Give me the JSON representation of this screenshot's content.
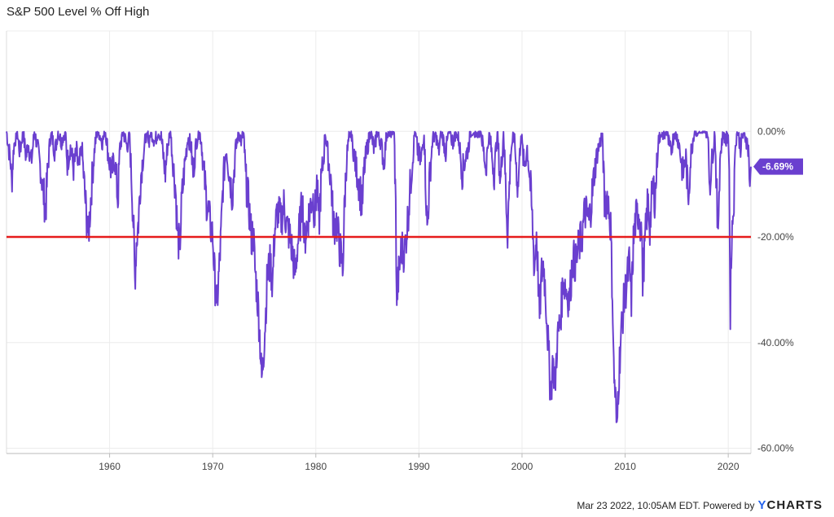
{
  "chart_data": {
    "type": "line",
    "title": "S&P 500 Level % Off High",
    "xlabel": "",
    "ylabel": "",
    "xlim": [
      1950,
      2022.2
    ],
    "ylim": [
      -61,
      19
    ],
    "x_ticks": [
      1960,
      1970,
      1980,
      1990,
      2000,
      2010,
      2020
    ],
    "x_tick_labels": [
      "1960",
      "1970",
      "1980",
      "1990",
      "2000",
      "2010",
      "2020"
    ],
    "y_ticks": [
      0,
      -20,
      -40,
      -60
    ],
    "y_tick_labels": [
      "0.00%",
      "-20.00%",
      "-40.00%",
      "-60.00%"
    ],
    "grid": true,
    "series": [
      {
        "name": "S&P 500 Level % Off High",
        "color": "#6a3fcf",
        "points": [
          [
            1950.0,
            0
          ],
          [
            1950.4,
            -6
          ],
          [
            1950.5,
            -10
          ],
          [
            1950.7,
            -3
          ],
          [
            1951.0,
            0
          ],
          [
            1951.3,
            -4
          ],
          [
            1951.6,
            0
          ],
          [
            1951.9,
            -5
          ],
          [
            1952.1,
            -2
          ],
          [
            1952.4,
            -6
          ],
          [
            1952.7,
            0
          ],
          [
            1953.0,
            -3
          ],
          [
            1953.3,
            -7
          ],
          [
            1953.6,
            -12
          ],
          [
            1953.8,
            -15
          ],
          [
            1954.0,
            -7
          ],
          [
            1954.3,
            0
          ],
          [
            1954.7,
            -4
          ],
          [
            1955.0,
            0
          ],
          [
            1955.3,
            -2
          ],
          [
            1955.7,
            0
          ],
          [
            1955.9,
            -6
          ],
          [
            1956.2,
            -3
          ],
          [
            1956.5,
            -7
          ],
          [
            1956.8,
            -4
          ],
          [
            1957.0,
            -8
          ],
          [
            1957.3,
            -3
          ],
          [
            1957.6,
            -12
          ],
          [
            1957.9,
            -20
          ],
          [
            1958.0,
            -18
          ],
          [
            1958.3,
            -9
          ],
          [
            1958.6,
            -2
          ],
          [
            1958.9,
            0
          ],
          [
            1959.3,
            -2
          ],
          [
            1959.6,
            0
          ],
          [
            1959.9,
            -5
          ],
          [
            1960.2,
            -8
          ],
          [
            1960.5,
            -5
          ],
          [
            1960.8,
            -13
          ],
          [
            1961.0,
            -3
          ],
          [
            1961.3,
            0
          ],
          [
            1961.7,
            -3
          ],
          [
            1961.9,
            0
          ],
          [
            1962.1,
            -8
          ],
          [
            1962.3,
            -17
          ],
          [
            1962.45,
            -28
          ],
          [
            1962.6,
            -21
          ],
          [
            1962.8,
            -17
          ],
          [
            1963.0,
            -9
          ],
          [
            1963.3,
            -4
          ],
          [
            1963.6,
            0
          ],
          [
            1963.8,
            -2
          ],
          [
            1964.0,
            0
          ],
          [
            1964.4,
            -2
          ],
          [
            1964.7,
            0
          ],
          [
            1965.0,
            -1
          ],
          [
            1965.4,
            -8
          ],
          [
            1965.6,
            -3
          ],
          [
            1965.9,
            0
          ],
          [
            1966.1,
            -5
          ],
          [
            1966.4,
            -11
          ],
          [
            1966.6,
            -20
          ],
          [
            1966.8,
            -22
          ],
          [
            1967.0,
            -13
          ],
          [
            1967.3,
            -6
          ],
          [
            1967.6,
            -1
          ],
          [
            1967.9,
            -3
          ],
          [
            1968.1,
            -8
          ],
          [
            1968.4,
            -2
          ],
          [
            1968.7,
            0
          ],
          [
            1968.9,
            -2
          ],
          [
            1969.1,
            -7
          ],
          [
            1969.4,
            -13
          ],
          [
            1969.7,
            -17
          ],
          [
            1970.0,
            -20
          ],
          [
            1970.2,
            -28
          ],
          [
            1970.4,
            -33
          ],
          [
            1970.6,
            -27
          ],
          [
            1970.8,
            -20
          ],
          [
            1971.0,
            -10
          ],
          [
            1971.3,
            -3
          ],
          [
            1971.6,
            -8
          ],
          [
            1971.9,
            -12
          ],
          [
            1972.2,
            -4
          ],
          [
            1972.5,
            0
          ],
          [
            1972.8,
            -2
          ],
          [
            1973.0,
            0
          ],
          [
            1973.2,
            -9
          ],
          [
            1973.5,
            -14
          ],
          [
            1973.8,
            -21
          ],
          [
            1973.9,
            -18
          ],
          [
            1974.1,
            -26
          ],
          [
            1974.4,
            -33
          ],
          [
            1974.6,
            -40
          ],
          [
            1974.75,
            -47
          ],
          [
            1974.9,
            -43
          ],
          [
            1975.1,
            -36
          ],
          [
            1975.3,
            -27
          ],
          [
            1975.6,
            -25
          ],
          [
            1975.8,
            -29
          ],
          [
            1976.0,
            -19
          ],
          [
            1976.3,
            -15
          ],
          [
            1976.6,
            -17
          ],
          [
            1976.9,
            -14
          ],
          [
            1977.2,
            -18
          ],
          [
            1977.5,
            -20
          ],
          [
            1977.8,
            -24
          ],
          [
            1978.0,
            -27
          ],
          [
            1978.2,
            -22
          ],
          [
            1978.5,
            -17
          ],
          [
            1978.7,
            -13
          ],
          [
            1978.9,
            -21
          ],
          [
            1979.1,
            -18
          ],
          [
            1979.4,
            -15
          ],
          [
            1979.7,
            -12
          ],
          [
            1979.9,
            -16
          ],
          [
            1980.1,
            -10
          ],
          [
            1980.3,
            -18
          ],
          [
            1980.5,
            -10
          ],
          [
            1980.8,
            -4
          ],
          [
            1980.9,
            0
          ],
          [
            1981.2,
            -5
          ],
          [
            1981.5,
            -10
          ],
          [
            1981.7,
            -18
          ],
          [
            1982.0,
            -17
          ],
          [
            1982.3,
            -22
          ],
          [
            1982.5,
            -24
          ],
          [
            1982.6,
            -27
          ],
          [
            1982.8,
            -13
          ],
          [
            1983.0,
            -5
          ],
          [
            1983.3,
            0
          ],
          [
            1983.6,
            -3
          ],
          [
            1983.9,
            -7
          ],
          [
            1984.2,
            -10
          ],
          [
            1984.5,
            -14
          ],
          [
            1984.7,
            -7
          ],
          [
            1985.0,
            -3
          ],
          [
            1985.3,
            0
          ],
          [
            1985.7,
            -4
          ],
          [
            1985.9,
            0
          ],
          [
            1986.3,
            -2
          ],
          [
            1986.6,
            -6
          ],
          [
            1986.9,
            0
          ],
          [
            1987.3,
            0
          ],
          [
            1987.6,
            0
          ],
          [
            1987.75,
            -15
          ],
          [
            1987.85,
            -32
          ],
          [
            1988.0,
            -28
          ],
          [
            1988.3,
            -22
          ],
          [
            1988.6,
            -23
          ],
          [
            1988.9,
            -17
          ],
          [
            1989.1,
            -12
          ],
          [
            1989.4,
            -5
          ],
          [
            1989.6,
            0
          ],
          [
            1989.9,
            -4
          ],
          [
            1990.2,
            -6
          ],
          [
            1990.5,
            0
          ],
          [
            1990.8,
            -19
          ],
          [
            1991.0,
            -10
          ],
          [
            1991.3,
            -2
          ],
          [
            1991.6,
            0
          ],
          [
            1991.9,
            -4
          ],
          [
            1992.2,
            0
          ],
          [
            1992.6,
            -4
          ],
          [
            1992.9,
            0
          ],
          [
            1993.3,
            -2
          ],
          [
            1993.6,
            0
          ],
          [
            1993.9,
            -2
          ],
          [
            1994.2,
            -8
          ],
          [
            1994.5,
            -5
          ],
          [
            1994.8,
            -3
          ],
          [
            1995.0,
            0
          ],
          [
            1995.5,
            0
          ],
          [
            1996.0,
            0
          ],
          [
            1996.5,
            -7
          ],
          [
            1996.8,
            0
          ],
          [
            1997.3,
            -8
          ],
          [
            1997.6,
            0
          ],
          [
            1997.9,
            -10
          ],
          [
            1998.2,
            0
          ],
          [
            1998.6,
            -19
          ],
          [
            1998.9,
            -4
          ],
          [
            1999.2,
            0
          ],
          [
            1999.6,
            -11
          ],
          [
            1999.9,
            0
          ],
          [
            2000.2,
            -7
          ],
          [
            2000.5,
            -3
          ],
          [
            2000.8,
            -10
          ],
          [
            2001.0,
            -17
          ],
          [
            2001.2,
            -26
          ],
          [
            2001.4,
            -19
          ],
          [
            2001.7,
            -35
          ],
          [
            2001.9,
            -27
          ],
          [
            2002.1,
            -25
          ],
          [
            2002.4,
            -35
          ],
          [
            2002.7,
            -47
          ],
          [
            2002.8,
            -49
          ],
          [
            2003.0,
            -44
          ],
          [
            2003.2,
            -48
          ],
          [
            2003.4,
            -40
          ],
          [
            2003.7,
            -36
          ],
          [
            2004.0,
            -28
          ],
          [
            2004.3,
            -30
          ],
          [
            2004.6,
            -32
          ],
          [
            2004.9,
            -24
          ],
          [
            2005.2,
            -25
          ],
          [
            2005.5,
            -22
          ],
          [
            2005.8,
            -20
          ],
          [
            2006.1,
            -15
          ],
          [
            2006.5,
            -17
          ],
          [
            2006.8,
            -12
          ],
          [
            2007.0,
            -8
          ],
          [
            2007.3,
            -4
          ],
          [
            2007.6,
            -2
          ],
          [
            2007.8,
            0
          ],
          [
            2008.0,
            -14
          ],
          [
            2008.3,
            -12
          ],
          [
            2008.6,
            -18
          ],
          [
            2008.8,
            -34
          ],
          [
            2008.9,
            -45
          ],
          [
            2009.1,
            -52
          ],
          [
            2009.2,
            -58
          ],
          [
            2009.3,
            -50
          ],
          [
            2009.5,
            -42
          ],
          [
            2009.7,
            -36
          ],
          [
            2009.9,
            -32
          ],
          [
            2010.2,
            -28
          ],
          [
            2010.4,
            -25
          ],
          [
            2010.6,
            -32
          ],
          [
            2010.8,
            -21
          ],
          [
            2011.0,
            -17
          ],
          [
            2011.3,
            -15
          ],
          [
            2011.6,
            -19
          ],
          [
            2011.7,
            -28
          ],
          [
            2011.9,
            -22
          ],
          [
            2012.2,
            -13
          ],
          [
            2012.4,
            -18
          ],
          [
            2012.7,
            -10
          ],
          [
            2012.9,
            -13
          ],
          [
            2013.2,
            -2
          ],
          [
            2013.5,
            0
          ],
          [
            2013.8,
            -1
          ],
          [
            2014.0,
            0
          ],
          [
            2014.4,
            -4
          ],
          [
            2014.8,
            0
          ],
          [
            2015.2,
            -2
          ],
          [
            2015.6,
            -8
          ],
          [
            2015.9,
            -5
          ],
          [
            2016.1,
            -13
          ],
          [
            2016.4,
            -4
          ],
          [
            2016.7,
            0
          ],
          [
            2017.0,
            0
          ],
          [
            2017.5,
            0
          ],
          [
            2018.0,
            0
          ],
          [
            2018.2,
            -10
          ],
          [
            2018.5,
            -4
          ],
          [
            2018.7,
            0
          ],
          [
            2018.9,
            -13
          ],
          [
            2018.98,
            -20
          ],
          [
            2019.2,
            -5
          ],
          [
            2019.5,
            0
          ],
          [
            2019.8,
            -2
          ],
          [
            2020.0,
            0
          ],
          [
            2020.1,
            -8
          ],
          [
            2020.2,
            -34
          ],
          [
            2020.3,
            -22
          ],
          [
            2020.6,
            -10
          ],
          [
            2020.7,
            -2
          ],
          [
            2020.9,
            0
          ],
          [
            2021.2,
            -3
          ],
          [
            2021.5,
            0
          ],
          [
            2021.8,
            -2
          ],
          [
            2022.0,
            -4
          ],
          [
            2022.1,
            -13
          ],
          [
            2022.2,
            -6.69
          ]
        ]
      }
    ],
    "reference_line": {
      "y": -20,
      "color": "#e61b1b"
    },
    "last_value_label": "-6.69%"
  },
  "footer": {
    "timestamp_text": "Mar 23 2022, 10:05AM EDT.  Powered by",
    "brand_y": "Y",
    "brand_rest": "CHARTS"
  }
}
